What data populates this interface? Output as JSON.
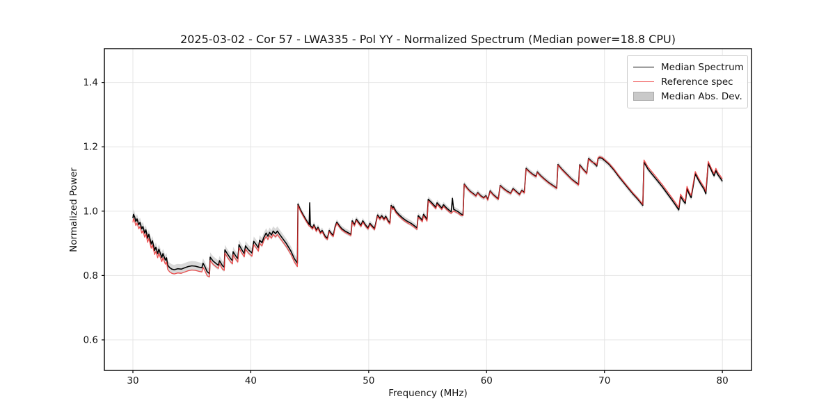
{
  "figure": {
    "title": "2025-03-02 - Cor 57 - LWA335 - Pol YY - Normalized Spectrum (Median power=18.8 CPU)",
    "xlabel": "Frequency (MHz)",
    "ylabel": "Normalized Power"
  },
  "chart_data": {
    "type": "line",
    "title": "2025-03-02 - Cor 57 - LWA335 - Pol YY - Normalized Spectrum (Median power=18.8 CPU)",
    "xlabel": "Frequency (MHz)",
    "ylabel": "Normalized Power",
    "xlim": [
      27.58,
      82.47
    ],
    "ylim": [
      0.505,
      1.505
    ],
    "xticks": [
      30,
      40,
      50,
      60,
      70,
      80
    ],
    "yticks": [
      0.6,
      0.8,
      1.0,
      1.2,
      1.4
    ],
    "grid": true,
    "grid_color": "#e4e4e4",
    "legend_position": "upper right",
    "series": [
      {
        "name": "Median Spectrum",
        "color": "#000000",
        "style": "line",
        "points": [
          [
            30.0,
            0.978
          ],
          [
            30.05,
            0.99
          ],
          [
            30.15,
            0.982
          ],
          [
            30.25,
            0.968
          ],
          [
            30.35,
            0.976
          ],
          [
            30.5,
            0.958
          ],
          [
            30.6,
            0.965
          ],
          [
            30.75,
            0.945
          ],
          [
            30.85,
            0.952
          ],
          [
            31.0,
            0.932
          ],
          [
            31.1,
            0.942
          ],
          [
            31.25,
            0.916
          ],
          [
            31.35,
            0.928
          ],
          [
            31.55,
            0.898
          ],
          [
            31.65,
            0.908
          ],
          [
            31.85,
            0.878
          ],
          [
            31.95,
            0.888
          ],
          [
            32.1,
            0.868
          ],
          [
            32.2,
            0.882
          ],
          [
            32.45,
            0.856
          ],
          [
            32.55,
            0.868
          ],
          [
            32.75,
            0.848
          ],
          [
            32.85,
            0.855
          ],
          [
            32.95,
            0.832
          ],
          [
            33.1,
            0.825
          ],
          [
            33.3,
            0.82
          ],
          [
            33.5,
            0.818
          ],
          [
            33.8,
            0.821
          ],
          [
            34.1,
            0.82
          ],
          [
            34.4,
            0.824
          ],
          [
            34.7,
            0.828
          ],
          [
            35.0,
            0.83
          ],
          [
            35.3,
            0.829
          ],
          [
            35.6,
            0.826
          ],
          [
            35.85,
            0.824
          ],
          [
            35.95,
            0.838
          ],
          [
            36.1,
            0.828
          ],
          [
            36.3,
            0.812
          ],
          [
            36.5,
            0.806
          ],
          [
            36.55,
            0.857
          ],
          [
            36.8,
            0.845
          ],
          [
            37.1,
            0.836
          ],
          [
            37.25,
            0.832
          ],
          [
            37.35,
            0.846
          ],
          [
            37.6,
            0.83
          ],
          [
            37.75,
            0.826
          ],
          [
            37.8,
            0.88
          ],
          [
            38.0,
            0.868
          ],
          [
            38.3,
            0.852
          ],
          [
            38.45,
            0.846
          ],
          [
            38.5,
            0.874
          ],
          [
            38.7,
            0.862
          ],
          [
            38.9,
            0.852
          ],
          [
            39.0,
            0.896
          ],
          [
            39.2,
            0.882
          ],
          [
            39.45,
            0.868
          ],
          [
            39.55,
            0.892
          ],
          [
            39.8,
            0.88
          ],
          [
            40.1,
            0.87
          ],
          [
            40.25,
            0.906
          ],
          [
            40.5,
            0.894
          ],
          [
            40.65,
            0.886
          ],
          [
            40.75,
            0.91
          ],
          [
            40.95,
            0.902
          ],
          [
            41.1,
            0.918
          ],
          [
            41.3,
            0.932
          ],
          [
            41.45,
            0.922
          ],
          [
            41.6,
            0.934
          ],
          [
            41.75,
            0.926
          ],
          [
            41.9,
            0.938
          ],
          [
            42.1,
            0.93
          ],
          [
            42.25,
            0.938
          ],
          [
            42.4,
            0.93
          ],
          [
            42.7,
            0.915
          ],
          [
            43.0,
            0.9
          ],
          [
            43.4,
            0.876
          ],
          [
            43.7,
            0.852
          ],
          [
            43.95,
            0.838
          ],
          [
            44.0,
            1.022
          ],
          [
            44.2,
            1.005
          ],
          [
            44.45,
            0.988
          ],
          [
            44.7,
            0.972
          ],
          [
            44.95,
            0.958
          ],
          [
            45.0,
            1.026
          ],
          [
            45.05,
            0.955
          ],
          [
            45.25,
            0.948
          ],
          [
            45.35,
            0.958
          ],
          [
            45.55,
            0.941
          ],
          [
            45.7,
            0.95
          ],
          [
            45.9,
            0.934
          ],
          [
            46.05,
            0.94
          ],
          [
            46.3,
            0.922
          ],
          [
            46.5,
            0.916
          ],
          [
            46.65,
            0.94
          ],
          [
            46.85,
            0.93
          ],
          [
            47.0,
            0.925
          ],
          [
            47.15,
            0.952
          ],
          [
            47.3,
            0.966
          ],
          [
            47.5,
            0.955
          ],
          [
            47.7,
            0.946
          ],
          [
            48.0,
            0.938
          ],
          [
            48.3,
            0.932
          ],
          [
            48.5,
            0.928
          ],
          [
            48.6,
            0.97
          ],
          [
            48.8,
            0.958
          ],
          [
            48.95,
            0.975
          ],
          [
            49.15,
            0.965
          ],
          [
            49.35,
            0.956
          ],
          [
            49.5,
            0.97
          ],
          [
            49.75,
            0.956
          ],
          [
            49.95,
            0.948
          ],
          [
            50.1,
            0.962
          ],
          [
            50.3,
            0.954
          ],
          [
            50.5,
            0.946
          ],
          [
            50.75,
            0.988
          ],
          [
            50.95,
            0.978
          ],
          [
            51.1,
            0.986
          ],
          [
            51.3,
            0.976
          ],
          [
            51.45,
            0.984
          ],
          [
            51.65,
            0.97
          ],
          [
            51.8,
            0.964
          ],
          [
            51.9,
            1.018
          ],
          [
            52.05,
            1.01
          ],
          [
            52.1,
            1.014
          ],
          [
            52.3,
            1.0
          ],
          [
            52.6,
            0.988
          ],
          [
            52.9,
            0.978
          ],
          [
            53.2,
            0.97
          ],
          [
            53.6,
            0.962
          ],
          [
            53.9,
            0.954
          ],
          [
            54.1,
            0.948
          ],
          [
            54.2,
            0.986
          ],
          [
            54.4,
            0.978
          ],
          [
            54.55,
            0.972
          ],
          [
            54.65,
            0.99
          ],
          [
            54.85,
            0.98
          ],
          [
            54.95,
            0.974
          ],
          [
            55.05,
            1.037
          ],
          [
            55.3,
            1.028
          ],
          [
            55.55,
            1.018
          ],
          [
            55.7,
            1.012
          ],
          [
            55.8,
            1.026
          ],
          [
            56.0,
            1.018
          ],
          [
            56.2,
            1.01
          ],
          [
            56.35,
            1.02
          ],
          [
            56.6,
            1.01
          ],
          [
            56.85,
            1.002
          ],
          [
            57.0,
            0.998
          ],
          [
            57.1,
            1.04
          ],
          [
            57.2,
            1.006
          ],
          [
            57.4,
            1.002
          ],
          [
            57.6,
            0.998
          ],
          [
            57.8,
            0.992
          ],
          [
            58.0,
            0.988
          ],
          [
            58.1,
            1.084
          ],
          [
            58.35,
            1.072
          ],
          [
            58.6,
            1.062
          ],
          [
            58.85,
            1.055
          ],
          [
            59.1,
            1.048
          ],
          [
            59.25,
            1.058
          ],
          [
            59.5,
            1.048
          ],
          [
            59.75,
            1.042
          ],
          [
            59.95,
            1.048
          ],
          [
            60.1,
            1.036
          ],
          [
            60.3,
            1.063
          ],
          [
            60.55,
            1.052
          ],
          [
            60.8,
            1.044
          ],
          [
            61.0,
            1.038
          ],
          [
            61.15,
            1.08
          ],
          [
            61.45,
            1.07
          ],
          [
            61.75,
            1.062
          ],
          [
            62.05,
            1.056
          ],
          [
            62.25,
            1.07
          ],
          [
            62.55,
            1.06
          ],
          [
            62.8,
            1.052
          ],
          [
            63.0,
            1.065
          ],
          [
            63.2,
            1.058
          ],
          [
            63.35,
            1.133
          ],
          [
            63.6,
            1.124
          ],
          [
            63.9,
            1.115
          ],
          [
            64.2,
            1.108
          ],
          [
            64.3,
            1.122
          ],
          [
            64.6,
            1.11
          ],
          [
            64.9,
            1.1
          ],
          [
            65.3,
            1.088
          ],
          [
            65.7,
            1.078
          ],
          [
            65.95,
            1.072
          ],
          [
            66.05,
            1.145
          ],
          [
            66.4,
            1.13
          ],
          [
            66.8,
            1.115
          ],
          [
            67.2,
            1.1
          ],
          [
            67.55,
            1.09
          ],
          [
            67.8,
            1.083
          ],
          [
            67.9,
            1.144
          ],
          [
            68.2,
            1.13
          ],
          [
            68.5,
            1.118
          ],
          [
            68.65,
            1.164
          ],
          [
            68.9,
            1.155
          ],
          [
            69.2,
            1.146
          ],
          [
            69.35,
            1.14
          ],
          [
            69.45,
            1.163
          ],
          [
            69.6,
            1.166
          ],
          [
            69.8,
            1.164
          ],
          [
            70.0,
            1.158
          ],
          [
            70.4,
            1.145
          ],
          [
            70.8,
            1.128
          ],
          [
            71.2,
            1.108
          ],
          [
            71.6,
            1.09
          ],
          [
            72.0,
            1.072
          ],
          [
            72.4,
            1.054
          ],
          [
            72.8,
            1.038
          ],
          [
            73.1,
            1.025
          ],
          [
            73.25,
            1.018
          ],
          [
            73.35,
            1.152
          ],
          [
            73.7,
            1.13
          ],
          [
            74.1,
            1.112
          ],
          [
            74.5,
            1.094
          ],
          [
            74.9,
            1.076
          ],
          [
            75.3,
            1.056
          ],
          [
            75.7,
            1.036
          ],
          [
            76.05,
            1.018
          ],
          [
            76.3,
            1.004
          ],
          [
            76.45,
            1.046
          ],
          [
            76.65,
            1.034
          ],
          [
            76.85,
            1.024
          ],
          [
            77.0,
            1.07
          ],
          [
            77.2,
            1.052
          ],
          [
            77.35,
            1.042
          ],
          [
            77.7,
            1.116
          ],
          [
            77.95,
            1.098
          ],
          [
            78.2,
            1.082
          ],
          [
            78.45,
            1.068
          ],
          [
            78.6,
            1.054
          ],
          [
            78.8,
            1.148
          ],
          [
            79.0,
            1.132
          ],
          [
            79.2,
            1.116
          ],
          [
            79.3,
            1.11
          ],
          [
            79.45,
            1.126
          ],
          [
            79.6,
            1.114
          ],
          [
            79.8,
            1.104
          ],
          [
            80.0,
            1.093
          ]
        ]
      },
      {
        "name": "Reference spec",
        "color": "#f26b6b",
        "plot_color": "rgba(238,50,50,0.85)",
        "style": "line",
        "derived_from": "Median Spectrum",
        "offset_by_freq": [
          [
            27.5,
            -0.013
          ],
          [
            36.5,
            -0.01
          ],
          [
            44.0,
            -0.004
          ],
          [
            52.0,
            -0.005
          ],
          [
            58.0,
            -0.002
          ],
          [
            69.0,
            0.003
          ],
          [
            73.3,
            0.007
          ]
        ],
        "excludes_spike_threshold": 0.025
      },
      {
        "name": "Median Abs. Dev.",
        "color": "#c9c9c9",
        "style": "band",
        "around": "Median Spectrum",
        "halfwidth_by_freq": [
          [
            27.5,
            0.015
          ],
          [
            44.0,
            0.009
          ],
          [
            58.0,
            0.008
          ]
        ]
      }
    ]
  }
}
